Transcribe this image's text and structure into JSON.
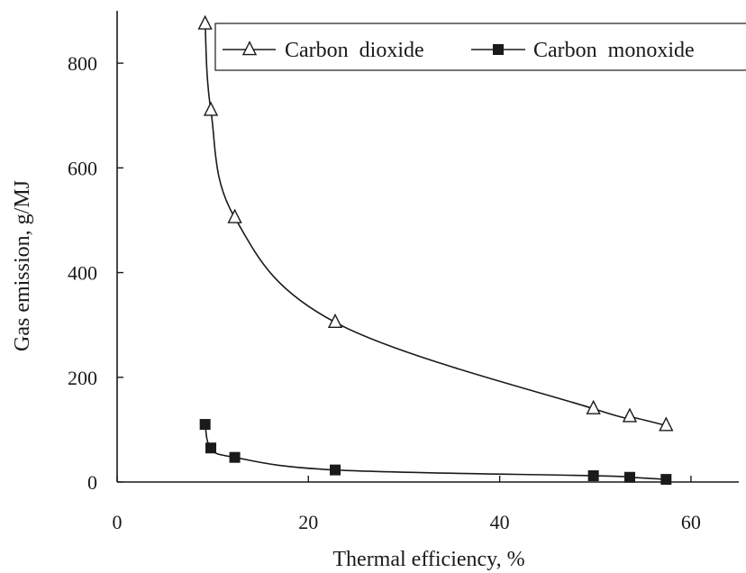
{
  "chart_data": {
    "type": "line",
    "xlabel": "Thermal efficiency, %",
    "ylabel": "Gas emission, g/MJ",
    "xlim": [
      0,
      65
    ],
    "ylim": [
      0,
      900
    ],
    "xticks": [
      0,
      20,
      40,
      60
    ],
    "yticks": [
      0,
      200,
      400,
      600,
      800
    ],
    "grid": false,
    "legend": "top-right",
    "series": [
      {
        "name": "Carbon  dioxide",
        "marker": "open-triangle",
        "color": "#1a1a1a",
        "x": [
          9.2,
          9.8,
          12.3,
          22.8,
          49.8,
          53.6,
          57.4
        ],
        "y": [
          875,
          710,
          505,
          305,
          140,
          125,
          108
        ]
      },
      {
        "name": "Carbon  monoxide",
        "marker": "filled-square",
        "color": "#1a1a1a",
        "x": [
          9.2,
          9.8,
          12.3,
          22.8,
          49.8,
          53.6,
          57.4
        ],
        "y": [
          110,
          65,
          47,
          23,
          12,
          9,
          5
        ]
      }
    ]
  }
}
